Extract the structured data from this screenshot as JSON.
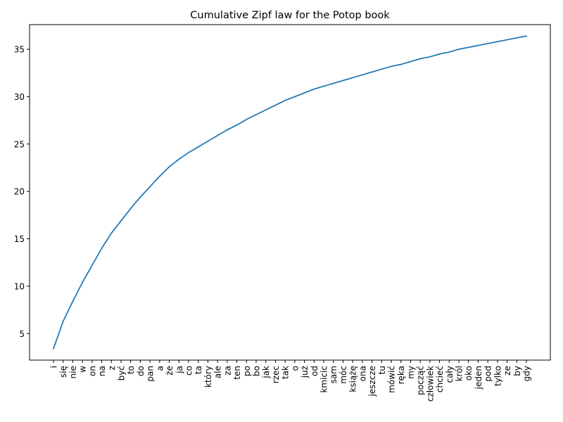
{
  "chart_data": {
    "type": "line",
    "title": "Cumulative Zipf law for the Potop book",
    "xlabel": "",
    "ylabel": "",
    "categories": [
      "i",
      "się",
      "nie",
      "w",
      "on",
      "na",
      "z",
      "być",
      "to",
      "do",
      "pan",
      "a",
      "że",
      "ja",
      "co",
      "ta",
      "który",
      "ale",
      "za",
      "ten",
      "po",
      "bo",
      "jak",
      "rzec",
      "tak",
      "o",
      "już",
      "od",
      "kmicic",
      "sam",
      "móc",
      "książę",
      "ona",
      "jeszcze",
      "tu",
      "mówić",
      "ręka",
      "my",
      "począć",
      "człowiek",
      "chcieć",
      "cały",
      "król",
      "oko",
      "jeden",
      "pod",
      "tylko",
      "ze",
      "by",
      "gdy"
    ],
    "series": [
      {
        "values": [
          3.4,
          6.3,
          8.4,
          10.4,
          12.2,
          14.0,
          15.6,
          16.9,
          18.2,
          19.4,
          20.5,
          21.6,
          22.6,
          23.4,
          24.1,
          24.7,
          25.3,
          25.9,
          26.5,
          27.0,
          27.6,
          28.1,
          28.6,
          29.1,
          29.6,
          30.0,
          30.4,
          30.8,
          31.1,
          31.4,
          31.7,
          32.0,
          32.3,
          32.6,
          32.9,
          33.2,
          33.4,
          33.7,
          34.0,
          34.2,
          34.5,
          34.7,
          35.0,
          35.2,
          35.4,
          35.6,
          35.8,
          36.0,
          36.2,
          36.4
        ]
      }
    ],
    "yticks": [
      5,
      10,
      15,
      20,
      25,
      30,
      35
    ],
    "ylim": [
      2.2,
      37.6
    ],
    "grid": false,
    "line_color": "#1f77b4"
  }
}
